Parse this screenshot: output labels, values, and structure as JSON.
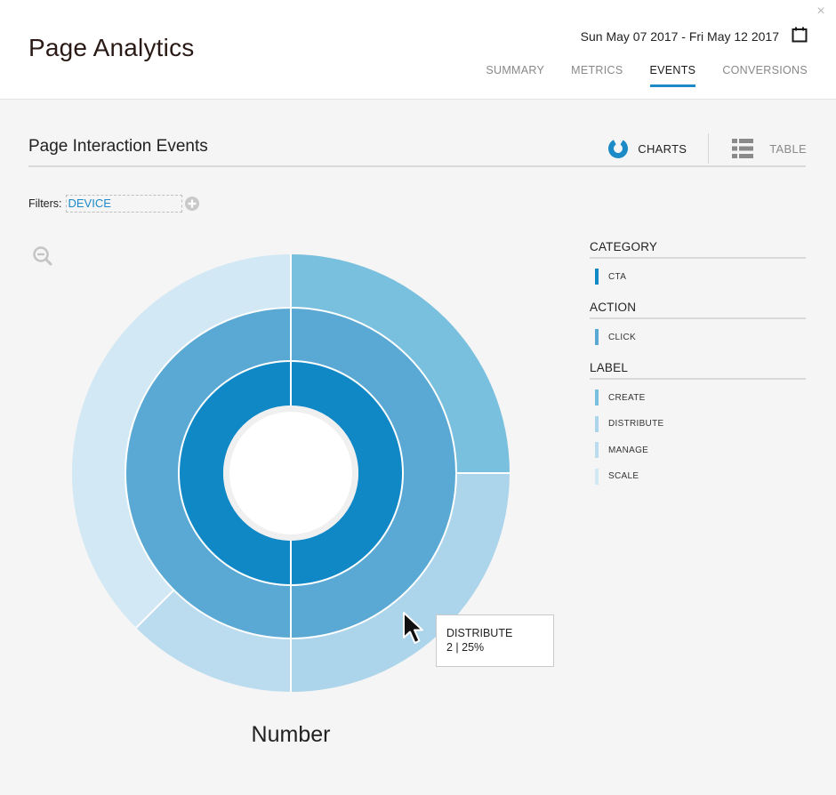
{
  "header": {
    "title": "Page Analytics",
    "date_range": "Sun May 07 2017 - Fri May 12 2017",
    "close_symbol": "×",
    "tabs": [
      {
        "label": "SUMMARY",
        "active": false
      },
      {
        "label": "METRICS",
        "active": false
      },
      {
        "label": "EVENTS",
        "active": true
      },
      {
        "label": "CONVERSIONS",
        "active": false
      }
    ]
  },
  "section": {
    "title": "Page Interaction Events",
    "view_toggle": {
      "charts_label": "CHARTS",
      "table_label": "TABLE",
      "active": "charts"
    }
  },
  "filters": {
    "label": "Filters:",
    "chips": [
      "DEVICE"
    ]
  },
  "chart": {
    "caption": "Number"
  },
  "chart_data": {
    "type": "sunburst",
    "rings": [
      {
        "level": "CATEGORY",
        "segments": [
          {
            "name": "CTA",
            "value": 8,
            "color": "#1088c6"
          }
        ]
      },
      {
        "level": "ACTION",
        "segments": [
          {
            "name": "CLICK",
            "value": 8,
            "color": "#59a9d4"
          }
        ]
      },
      {
        "level": "LABEL",
        "segments": [
          {
            "name": "CREATE",
            "value": 2,
            "color": "#79bfde"
          },
          {
            "name": "DISTRIBUTE",
            "value": 2,
            "color": "#acd4ea"
          },
          {
            "name": "MANAGE",
            "value": 1,
            "color": "#bbdcef"
          },
          {
            "name": "SCALE",
            "value": 3,
            "color": "#d2e8f4"
          }
        ]
      }
    ]
  },
  "legend": [
    {
      "heading": "CATEGORY",
      "items": [
        {
          "label": "CTA",
          "color": "#1088c6"
        }
      ]
    },
    {
      "heading": "ACTION",
      "items": [
        {
          "label": "CLICK",
          "color": "#59a9d4"
        }
      ]
    },
    {
      "heading": "LABEL",
      "items": [
        {
          "label": "CREATE",
          "color": "#79bfde"
        },
        {
          "label": "DISTRIBUTE",
          "color": "#acd4ea"
        },
        {
          "label": "MANAGE",
          "color": "#bbdcef"
        },
        {
          "label": "SCALE",
          "color": "#d2e8f4"
        }
      ]
    }
  ],
  "tooltip": {
    "title": "DISTRIBUTE",
    "value": "2 | 25%"
  },
  "colors": {
    "accent": "#1b8ac7",
    "brand_dark": "#2a1a16"
  },
  "icons": {
    "close": "close-icon",
    "calendar": "calendar-icon",
    "charts": "donut-chart-icon",
    "table": "list-table-icon",
    "add_filter": "plus-circle-icon",
    "zoom_out": "zoom-out-icon",
    "cursor": "mouse-pointer-icon"
  }
}
